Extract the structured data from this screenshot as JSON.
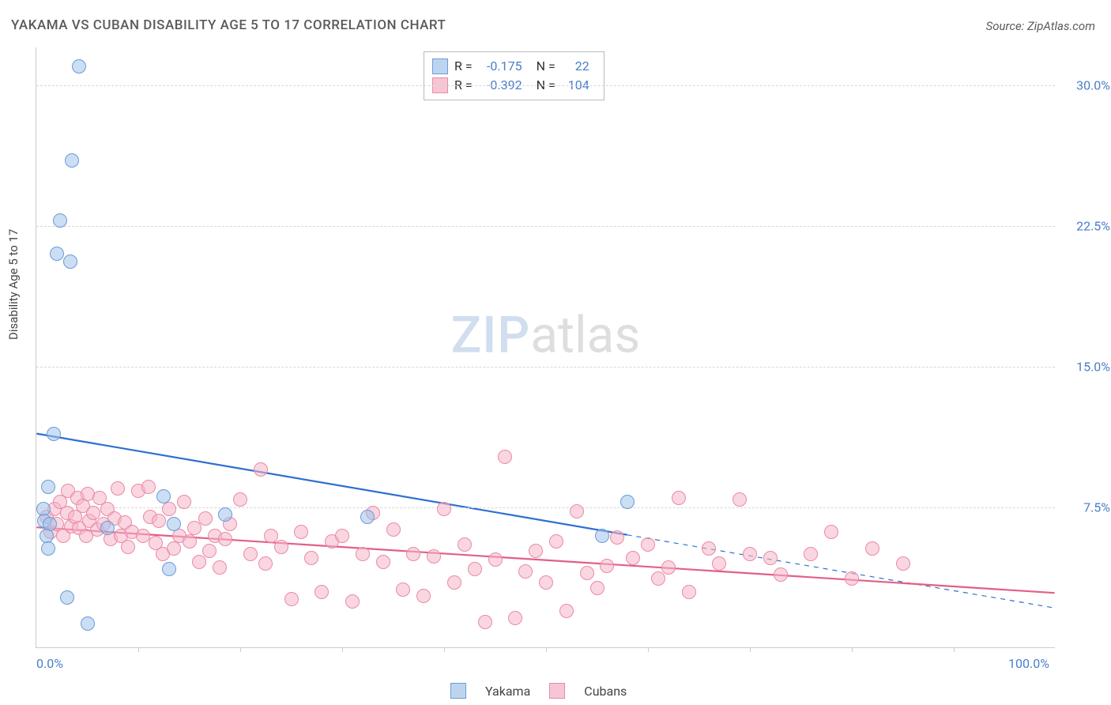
{
  "title": "YAKAMA VS CUBAN DISABILITY AGE 5 TO 17 CORRELATION CHART",
  "source": "Source: ZipAtlas.com",
  "ylabel": "Disability Age 5 to 17",
  "watermark_zip": "ZIP",
  "watermark_atlas": "atlas",
  "chart": {
    "type": "scatter",
    "background_color": "#ffffff",
    "grid_color": "#d8d8d8",
    "axis_color": "#cccccc",
    "xlim": [
      0,
      100
    ],
    "ylim": [
      0,
      32
    ],
    "xticks_major": [
      0,
      100
    ],
    "xtick_labels": [
      "0.0%",
      "100.0%"
    ],
    "xticks_minor": [
      10,
      20,
      30,
      40,
      50,
      60,
      70,
      80,
      90
    ],
    "yticks": [
      7.5,
      15.0,
      22.5,
      30.0
    ],
    "ytick_labels": [
      "7.5%",
      "15.0%",
      "22.5%",
      "30.0%"
    ],
    "tick_color": "#4a7ec9",
    "label_fontsize": 15,
    "tick_fontsize": 16,
    "point_radius": 9,
    "point_stroke_width": 1.2,
    "series": [
      {
        "name": "Yakama",
        "fill": "rgba(160,195,235,0.55)",
        "stroke": "#6a9bd8",
        "swatch_fill": "#bdd4ef",
        "swatch_stroke": "#6a9bd8",
        "R": "-0.175",
        "N": "22",
        "trend": {
          "color": "#2e6fd1",
          "width": 2.2,
          "solid_x": [
            0,
            58
          ],
          "solid_y": [
            11.4,
            6.0
          ],
          "dash_x": [
            58,
            100
          ],
          "dash_y": [
            6.0,
            2.1
          ]
        },
        "points": [
          [
            4.2,
            31.0
          ],
          [
            3.5,
            26.0
          ],
          [
            2.3,
            22.8
          ],
          [
            2.0,
            21.0
          ],
          [
            3.3,
            20.6
          ],
          [
            1.7,
            11.4
          ],
          [
            1.2,
            8.6
          ],
          [
            0.7,
            7.4
          ],
          [
            0.8,
            6.8
          ],
          [
            1.3,
            6.6
          ],
          [
            1.0,
            6.0
          ],
          [
            1.2,
            5.3
          ],
          [
            7.0,
            6.4
          ],
          [
            12.5,
            8.1
          ],
          [
            13.5,
            6.6
          ],
          [
            18.5,
            7.1
          ],
          [
            13.0,
            4.2
          ],
          [
            32.5,
            7.0
          ],
          [
            55.5,
            6.0
          ],
          [
            58.0,
            7.8
          ],
          [
            3.0,
            2.7
          ],
          [
            5.0,
            1.3
          ]
        ]
      },
      {
        "name": "Cubans",
        "fill": "rgba(245,180,200,0.55)",
        "stroke": "#e98aa6",
        "swatch_fill": "#f6c6d4",
        "swatch_stroke": "#e98aa6",
        "R": "-0.392",
        "N": "104",
        "trend": {
          "color": "#e35f86",
          "width": 2.2,
          "solid_x": [
            0,
            100
          ],
          "solid_y": [
            6.4,
            2.9
          ],
          "dash_x": null,
          "dash_y": null
        },
        "points": [
          [
            1.0,
            7.0
          ],
          [
            1.4,
            6.2
          ],
          [
            1.8,
            7.4
          ],
          [
            2.0,
            6.6
          ],
          [
            2.3,
            7.8
          ],
          [
            2.6,
            6.0
          ],
          [
            3.0,
            7.2
          ],
          [
            3.1,
            8.4
          ],
          [
            3.4,
            6.5
          ],
          [
            3.8,
            7.0
          ],
          [
            4.0,
            8.0
          ],
          [
            4.2,
            6.4
          ],
          [
            4.6,
            7.6
          ],
          [
            4.9,
            6.0
          ],
          [
            5.0,
            8.2
          ],
          [
            5.2,
            6.8
          ],
          [
            5.6,
            7.2
          ],
          [
            6.0,
            6.3
          ],
          [
            6.2,
            8.0
          ],
          [
            6.6,
            6.6
          ],
          [
            7.0,
            7.4
          ],
          [
            7.3,
            5.8
          ],
          [
            7.7,
            6.9
          ],
          [
            8.0,
            8.5
          ],
          [
            8.3,
            6.0
          ],
          [
            8.7,
            6.7
          ],
          [
            9.0,
            5.4
          ],
          [
            9.4,
            6.2
          ],
          [
            10.0,
            8.4
          ],
          [
            10.5,
            6.0
          ],
          [
            11.0,
            8.6
          ],
          [
            11.2,
            7.0
          ],
          [
            11.7,
            5.6
          ],
          [
            12.0,
            6.8
          ],
          [
            12.4,
            5.0
          ],
          [
            13.0,
            7.4
          ],
          [
            13.5,
            5.3
          ],
          [
            14.0,
            6.0
          ],
          [
            14.5,
            7.8
          ],
          [
            15.0,
            5.7
          ],
          [
            15.5,
            6.4
          ],
          [
            16.0,
            4.6
          ],
          [
            16.6,
            6.9
          ],
          [
            17.0,
            5.2
          ],
          [
            17.5,
            6.0
          ],
          [
            18.0,
            4.3
          ],
          [
            18.5,
            5.8
          ],
          [
            19.0,
            6.6
          ],
          [
            20.0,
            7.9
          ],
          [
            21.0,
            5.0
          ],
          [
            22.0,
            9.5
          ],
          [
            22.5,
            4.5
          ],
          [
            23.0,
            6.0
          ],
          [
            24.0,
            5.4
          ],
          [
            25.0,
            2.6
          ],
          [
            26.0,
            6.2
          ],
          [
            27.0,
            4.8
          ],
          [
            28.0,
            3.0
          ],
          [
            29.0,
            5.7
          ],
          [
            30.0,
            6.0
          ],
          [
            31.0,
            2.5
          ],
          [
            32.0,
            5.0
          ],
          [
            33.0,
            7.2
          ],
          [
            34.0,
            4.6
          ],
          [
            35.0,
            6.3
          ],
          [
            36.0,
            3.1
          ],
          [
            37.0,
            5.0
          ],
          [
            38.0,
            2.8
          ],
          [
            39.0,
            4.9
          ],
          [
            40.0,
            7.4
          ],
          [
            41.0,
            3.5
          ],
          [
            42.0,
            5.5
          ],
          [
            43.0,
            4.2
          ],
          [
            44.0,
            1.4
          ],
          [
            45.0,
            4.7
          ],
          [
            46.0,
            10.2
          ],
          [
            47.0,
            1.6
          ],
          [
            48.0,
            4.1
          ],
          [
            49.0,
            5.2
          ],
          [
            50.0,
            3.5
          ],
          [
            51.0,
            5.7
          ],
          [
            52.0,
            2.0
          ],
          [
            53.0,
            7.3
          ],
          [
            54.0,
            4.0
          ],
          [
            55.0,
            3.2
          ],
          [
            56.0,
            4.4
          ],
          [
            57.0,
            5.9
          ],
          [
            58.5,
            4.8
          ],
          [
            60.0,
            5.5
          ],
          [
            61.0,
            3.7
          ],
          [
            62.0,
            4.3
          ],
          [
            63.0,
            8.0
          ],
          [
            64.0,
            3.0
          ],
          [
            66.0,
            5.3
          ],
          [
            67.0,
            4.5
          ],
          [
            69.0,
            7.9
          ],
          [
            70.0,
            5.0
          ],
          [
            72.0,
            4.8
          ],
          [
            73.0,
            3.9
          ],
          [
            76.0,
            5.0
          ],
          [
            78.0,
            6.2
          ],
          [
            80.0,
            3.7
          ],
          [
            82.0,
            5.3
          ],
          [
            85.0,
            4.5
          ]
        ]
      }
    ],
    "legend_bottom": [
      {
        "label": "Yakama"
      },
      {
        "label": "Cubans"
      }
    ]
  }
}
